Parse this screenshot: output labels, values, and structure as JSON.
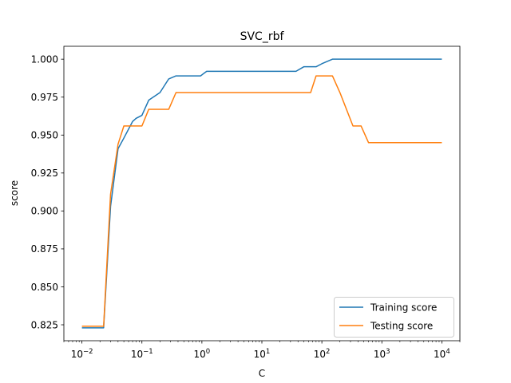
{
  "chart_data": {
    "type": "line",
    "title": "SVC_rbf",
    "xlabel": "C",
    "ylabel": "score",
    "xscale": "log",
    "xlim": [
      0.005,
      20000
    ],
    "ylim": [
      0.8145,
      1.0085
    ],
    "grid": false,
    "legend": "lower-right",
    "yticks": [
      0.825,
      0.85,
      0.875,
      0.9,
      0.925,
      0.95,
      0.975,
      1.0
    ],
    "ytick_labels": [
      "0.825",
      "0.850",
      "0.875",
      "0.900",
      "0.925",
      "0.950",
      "0.975",
      "1.000"
    ],
    "xticks_major": [
      {
        "value": 0.01,
        "base": "10",
        "exp": "−2"
      },
      {
        "value": 0.1,
        "base": "10",
        "exp": "−1"
      },
      {
        "value": 1,
        "base": "10",
        "exp": "0"
      },
      {
        "value": 10,
        "base": "10",
        "exp": "1"
      },
      {
        "value": 100,
        "base": "10",
        "exp": "2"
      },
      {
        "value": 1000,
        "base": "10",
        "exp": "3"
      },
      {
        "value": 10000,
        "base": "10",
        "exp": "4"
      }
    ],
    "series": [
      {
        "name": "Training score",
        "color": "#1f77b4",
        "x": [
          0.01,
          0.023,
          0.03,
          0.04,
          0.05,
          0.07,
          0.08,
          0.1,
          0.13,
          0.2,
          0.28,
          0.37,
          0.5,
          0.95,
          1.2,
          2,
          10,
          37,
          50,
          80,
          100,
          150,
          200,
          10000
        ],
        "y": [
          0.823,
          0.823,
          0.903,
          0.941,
          0.948,
          0.959,
          0.961,
          0.963,
          0.973,
          0.978,
          0.987,
          0.989,
          0.989,
          0.989,
          0.992,
          0.992,
          0.992,
          0.992,
          0.995,
          0.995,
          0.997,
          1.0,
          1.0,
          1.0
        ]
      },
      {
        "name": "Testing score",
        "color": "#ff7f0e",
        "x": [
          0.01,
          0.023,
          0.03,
          0.04,
          0.05,
          0.07,
          0.1,
          0.13,
          0.2,
          0.28,
          0.37,
          0.5,
          1,
          10,
          65,
          80,
          150,
          200,
          330,
          450,
          600,
          1000,
          10000
        ],
        "y": [
          0.824,
          0.824,
          0.911,
          0.944,
          0.956,
          0.956,
          0.956,
          0.967,
          0.967,
          0.967,
          0.978,
          0.978,
          0.978,
          0.978,
          0.978,
          0.989,
          0.989,
          0.978,
          0.956,
          0.956,
          0.945,
          0.945,
          0.945
        ]
      }
    ]
  }
}
